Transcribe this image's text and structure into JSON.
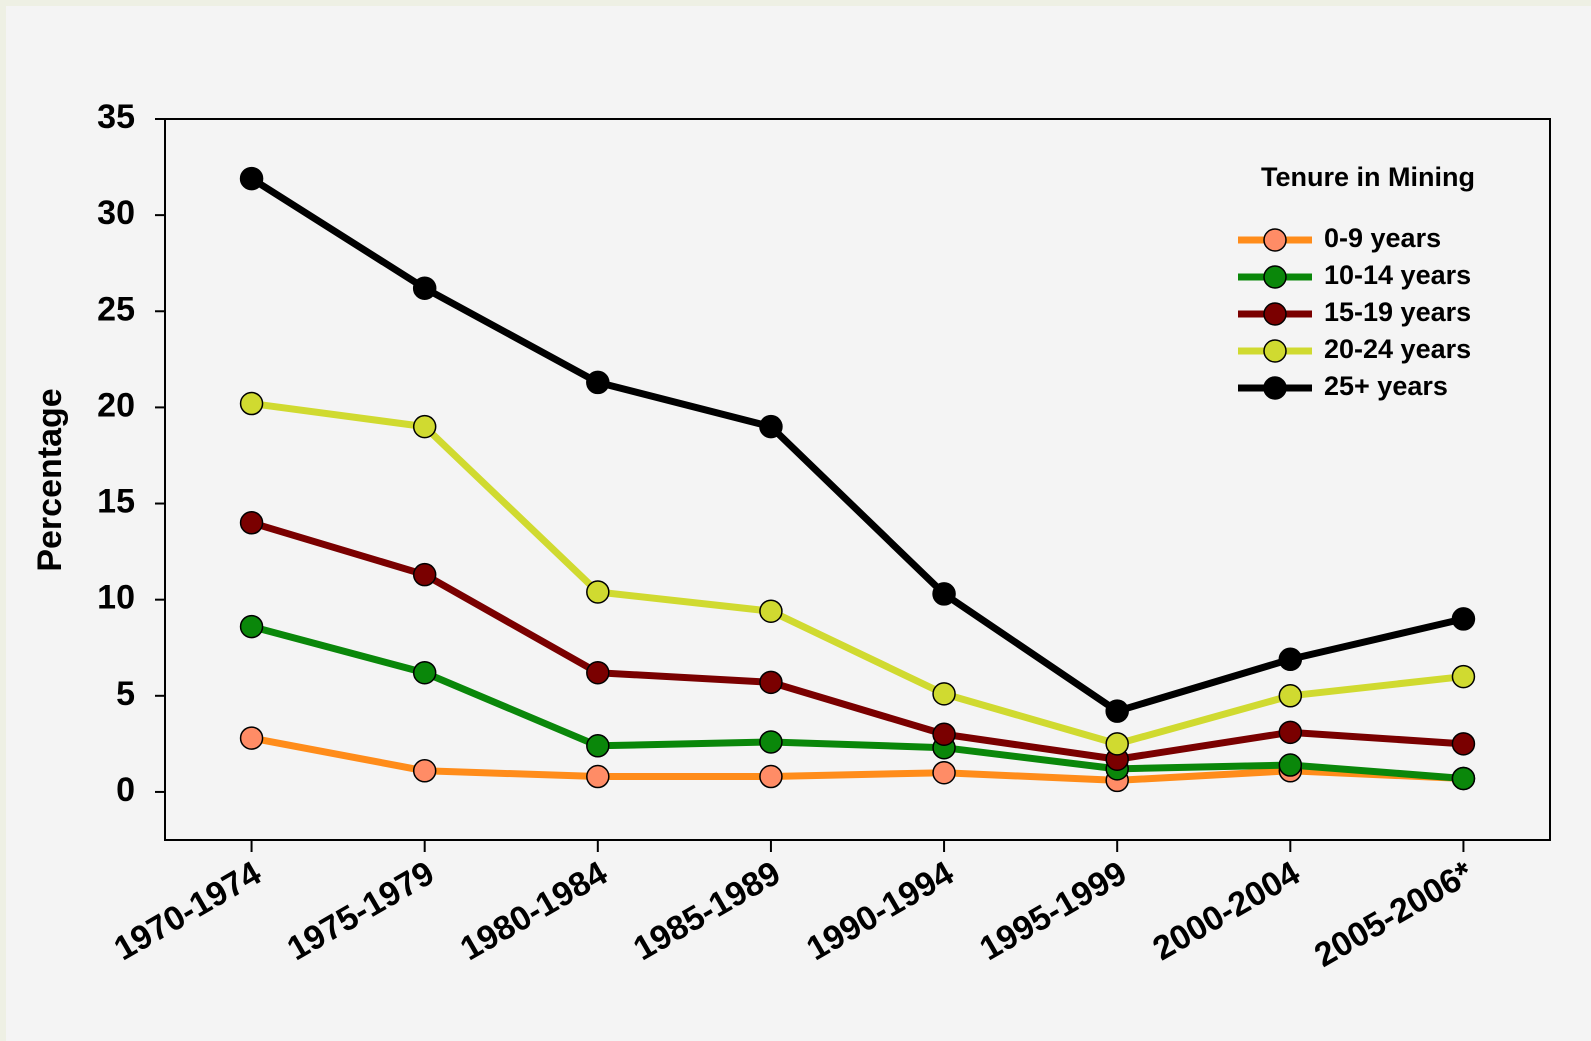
{
  "chart_data": {
    "type": "line",
    "categories": [
      "1970-1974",
      "1975-1979",
      "1980-1984",
      "1985-1989",
      "1990-1994",
      "1995-1999",
      "2000-2004",
      "2005-2006*"
    ],
    "y_label": "Percentage",
    "legend_title": "Tenure in Mining",
    "legend_position": "upper right",
    "ylim": [
      -2.5,
      35
    ],
    "yticks": [
      0,
      5,
      10,
      15,
      20,
      25,
      30,
      35
    ],
    "series": [
      {
        "name": "0-9 years",
        "color": "#ff8c1a",
        "marker_color": "#ff8c66",
        "values": [
          2.8,
          1.1,
          0.8,
          0.8,
          1.0,
          0.6,
          1.1,
          0.7
        ]
      },
      {
        "name": "10-14 years",
        "color": "#0a870a",
        "marker_color": "#0a870a",
        "values": [
          8.6,
          6.2,
          2.4,
          2.6,
          2.3,
          1.2,
          1.4,
          0.7
        ]
      },
      {
        "name": "15-19 years",
        "color": "#7a0000",
        "marker_color": "#7a0000",
        "values": [
          14.0,
          11.3,
          6.2,
          5.7,
          3.0,
          1.7,
          3.1,
          2.5
        ]
      },
      {
        "name": "20-24 years",
        "color": "#d0da30",
        "marker_color": "#d0da30",
        "values": [
          20.2,
          19.0,
          10.4,
          9.4,
          5.1,
          2.5,
          5.0,
          6.0
        ]
      },
      {
        "name": "25+ years",
        "color": "#000000",
        "marker_color": "#000000",
        "values": [
          31.9,
          26.2,
          21.3,
          19.0,
          10.3,
          4.2,
          6.9,
          9.0
        ]
      }
    ]
  }
}
